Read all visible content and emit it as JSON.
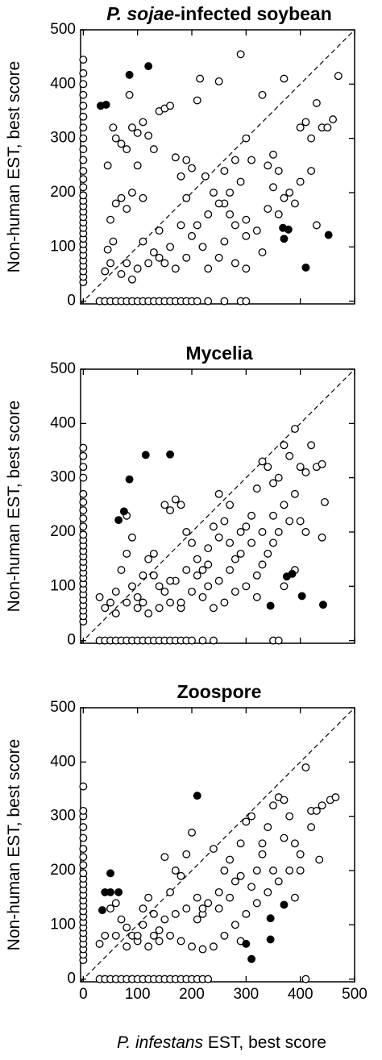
{
  "chart_data": [
    {
      "type": "scatter",
      "title_italic": "P. sojae",
      "title": "-infected soybean",
      "ylabel": "Non-human EST, best score",
      "xlim": [
        -5,
        500
      ],
      "ylim": [
        -5,
        500
      ],
      "xticks": [
        0,
        100,
        200,
        300,
        400,
        500
      ],
      "yticks": [
        0,
        100,
        200,
        300,
        400,
        500
      ],
      "xtick_labels": false,
      "diagonal": true,
      "series": [
        {
          "color": "#000000",
          "filled": false,
          "x": [
            0,
            0,
            0,
            0,
            0,
            0,
            0,
            0,
            0,
            0,
            0,
            0,
            0,
            0,
            0,
            0,
            0,
            0,
            0,
            0,
            0,
            0,
            0,
            0,
            0,
            0,
            0,
            0,
            0,
            0,
            30,
            40,
            50,
            60,
            70,
            80,
            90,
            100,
            110,
            120,
            130,
            140,
            150,
            160,
            170,
            180,
            190,
            200,
            210,
            230,
            260,
            290,
            300,
            40,
            50,
            45,
            55,
            60,
            50,
            45,
            55,
            60,
            70,
            80,
            90,
            100,
            110,
            120,
            130,
            140,
            150,
            160,
            170,
            180,
            190,
            200,
            210,
            215,
            250,
            290,
            225,
            240,
            260,
            270,
            280,
            300,
            320,
            330,
            340,
            350,
            360,
            370,
            380,
            390,
            400,
            410,
            420,
            430,
            440,
            450,
            470,
            460,
            330,
            300,
            280,
            250,
            220,
            200,
            180,
            160,
            140,
            120,
            100,
            80,
            70,
            90,
            110,
            130,
            150,
            170,
            190,
            210,
            230,
            250,
            270,
            290,
            310,
            350,
            360,
            370,
            300,
            340,
            400,
            420,
            430,
            110,
            90,
            70,
            80,
            85,
            140,
            230,
            260,
            300,
            280,
            260,
            100,
            190
          ],
          "values": [
            35,
            45,
            55,
            65,
            75,
            85,
            95,
            105,
            115,
            125,
            135,
            145,
            155,
            165,
            175,
            185,
            195,
            210,
            225,
            240,
            260,
            280,
            300,
            320,
            340,
            360,
            380,
            400,
            420,
            445,
            0,
            0,
            0,
            0,
            0,
            0,
            0,
            0,
            0,
            0,
            0,
            0,
            0,
            0,
            0,
            0,
            0,
            0,
            0,
            0,
            0,
            0,
            0,
            55,
            70,
            95,
            110,
            180,
            150,
            250,
            320,
            300,
            290,
            280,
            320,
            310,
            330,
            305,
            280,
            350,
            355,
            360,
            265,
            230,
            260,
            245,
            370,
            410,
            405,
            455,
            230,
            200,
            180,
            160,
            140,
            120,
            130,
            380,
            250,
            270,
            240,
            410,
            200,
            180,
            320,
            330,
            300,
            365,
            320,
            320,
            415,
            335,
            90,
            60,
            70,
            80,
            100,
            120,
            140,
            100,
            80,
            70,
            60,
            70,
            50,
            40,
            110,
            90,
            70,
            60,
            80,
            140,
            160,
            180,
            200,
            220,
            260,
            210,
            160,
            190,
            300,
            170,
            220,
            240,
            140,
            190,
            200,
            190,
            170,
            380,
            130,
            60,
            110,
            150,
            260,
            240,
            250,
            190
          ]
        },
        {
          "color": "#000000",
          "filled": true,
          "x": [
            32,
            42,
            85,
            120,
            368,
            378,
            370,
            410,
            452
          ],
          "values": [
            360,
            362,
            417,
            433,
            135,
            132,
            115,
            62,
            122
          ]
        }
      ]
    },
    {
      "type": "scatter",
      "title": "Mycelia",
      "ylabel": "Non-human EST, best score",
      "xlim": [
        -5,
        500
      ],
      "ylim": [
        -5,
        500
      ],
      "xticks": [
        0,
        100,
        200,
        300,
        400,
        500
      ],
      "yticks": [
        0,
        100,
        200,
        300,
        400,
        500
      ],
      "xtick_labels": false,
      "diagonal": true,
      "series": [
        {
          "color": "#000000",
          "filled": false,
          "x": [
            0,
            0,
            0,
            0,
            0,
            0,
            0,
            0,
            0,
            0,
            0,
            0,
            0,
            0,
            0,
            0,
            0,
            0,
            0,
            0,
            0,
            0,
            0,
            0,
            0,
            0,
            30,
            40,
            50,
            60,
            70,
            80,
            90,
            100,
            110,
            120,
            130,
            140,
            150,
            160,
            170,
            180,
            190,
            200,
            220,
            240,
            350,
            360,
            30,
            40,
            50,
            60,
            70,
            80,
            90,
            100,
            110,
            120,
            130,
            140,
            150,
            160,
            170,
            180,
            190,
            200,
            210,
            220,
            230,
            240,
            250,
            260,
            270,
            280,
            290,
            300,
            310,
            320,
            330,
            340,
            350,
            360,
            370,
            380,
            390,
            400,
            410,
            420,
            430,
            440,
            445,
            440,
            400,
            380,
            360,
            350,
            340,
            330,
            320,
            300,
            280,
            260,
            240,
            220,
            200,
            180,
            160,
            140,
            120,
            100,
            80,
            60,
            110,
            130,
            150,
            170,
            190,
            210,
            230,
            250,
            270,
            290,
            310,
            330,
            350,
            370,
            390,
            410,
            390,
            370,
            320,
            270,
            250,
            90,
            80,
            180,
            160,
            230
          ],
          "values": [
            35,
            45,
            55,
            65,
            75,
            85,
            95,
            105,
            115,
            125,
            135,
            145,
            155,
            165,
            175,
            185,
            195,
            210,
            225,
            240,
            255,
            270,
            300,
            320,
            340,
            355,
            0,
            0,
            0,
            0,
            0,
            0,
            0,
            0,
            0,
            0,
            0,
            0,
            0,
            0,
            0,
            0,
            0,
            0,
            0,
            0,
            0,
            0,
            80,
            60,
            70,
            90,
            130,
            160,
            100,
            80,
            70,
            150,
            120,
            100,
            250,
            240,
            260,
            250,
            200,
            180,
            150,
            130,
            170,
            210,
            190,
            220,
            180,
            150,
            200,
            210,
            230,
            280,
            330,
            320,
            290,
            300,
            360,
            340,
            390,
            320,
            310,
            360,
            320,
            325,
            255,
            190,
            220,
            220,
            200,
            180,
            160,
            140,
            120,
            100,
            90,
            70,
            60,
            80,
            90,
            60,
            70,
            60,
            50,
            60,
            70,
            50,
            120,
            160,
            90,
            110,
            130,
            120,
            140,
            110,
            130,
            160,
            180,
            200,
            230,
            250,
            270,
            200,
            130,
            100,
            80,
            250,
            270,
            190,
            230,
            70,
            110,
            100
          ]
        },
        {
          "color": "#000000",
          "filled": true,
          "x": [
            65,
            75,
            85,
            115,
            160,
            345,
            403,
            375,
            385,
            442
          ],
          "values": [
            222,
            238,
            297,
            342,
            343,
            64,
            82,
            118,
            123,
            66
          ]
        }
      ]
    },
    {
      "type": "scatter",
      "title": "Zoospore",
      "ylabel": "Non-human EST, best score",
      "xlabel_italic": "P. infestans",
      "xlabel": " EST, best score",
      "xlim": [
        -5,
        500
      ],
      "ylim": [
        -5,
        500
      ],
      "xticks": [
        0,
        100,
        200,
        300,
        400,
        500
      ],
      "yticks": [
        0,
        100,
        200,
        300,
        400,
        500
      ],
      "xtick_labels": true,
      "diagonal": true,
      "series": [
        {
          "color": "#000000",
          "filled": false,
          "x": [
            0,
            0,
            0,
            0,
            0,
            0,
            0,
            0,
            0,
            0,
            0,
            0,
            0,
            0,
            0,
            0,
            0,
            0,
            0,
            0,
            0,
            0,
            0,
            0,
            0,
            30,
            40,
            50,
            60,
            70,
            80,
            90,
            100,
            110,
            120,
            130,
            140,
            150,
            160,
            170,
            180,
            190,
            200,
            210,
            220,
            230,
            410,
            30,
            40,
            50,
            60,
            70,
            80,
            90,
            100,
            110,
            120,
            130,
            140,
            150,
            160,
            170,
            180,
            190,
            200,
            210,
            220,
            230,
            240,
            250,
            260,
            270,
            280,
            290,
            300,
            310,
            320,
            330,
            340,
            350,
            360,
            370,
            380,
            390,
            400,
            410,
            420,
            430,
            440,
            455,
            465,
            435,
            420,
            400,
            380,
            360,
            340,
            320,
            300,
            280,
            260,
            240,
            220,
            200,
            180,
            160,
            140,
            120,
            100,
            80,
            60,
            110,
            130,
            150,
            170,
            190,
            210,
            250,
            270,
            290,
            310,
            330,
            350,
            370,
            390,
            290,
            220
          ],
          "values": [
            35,
            45,
            55,
            65,
            75,
            85,
            95,
            105,
            115,
            125,
            135,
            145,
            155,
            165,
            175,
            185,
            195,
            210,
            225,
            240,
            260,
            280,
            300,
            310,
            355,
            0,
            0,
            0,
            0,
            0,
            0,
            0,
            0,
            0,
            0,
            0,
            0,
            0,
            0,
            0,
            0,
            0,
            0,
            0,
            0,
            0,
            0,
            65,
            80,
            130,
            140,
            110,
            95,
            80,
            70,
            130,
            150,
            120,
            90,
            225,
            160,
            200,
            190,
            230,
            270,
            150,
            120,
            140,
            240,
            160,
            200,
            220,
            180,
            250,
            290,
            300,
            200,
            250,
            280,
            320,
            335,
            330,
            300,
            250,
            230,
            390,
            310,
            310,
            320,
            330,
            335,
            220,
            280,
            200,
            200,
            180,
            160,
            140,
            120,
            100,
            80,
            60,
            55,
            60,
            70,
            80,
            70,
            60,
            80,
            60,
            80,
            100,
            80,
            110,
            120,
            130,
            110,
            130,
            150,
            190,
            170,
            230,
            200,
            260,
            150,
            70,
            130
          ]
        },
        {
          "color": "#000000",
          "filled": true,
          "x": [
            35,
            40,
            50,
            50,
            65,
            210,
            300,
            310,
            345,
            345,
            370
          ],
          "values": [
            127,
            160,
            195,
            160,
            160,
            338,
            65,
            37,
            112,
            73,
            137
          ]
        }
      ]
    }
  ]
}
